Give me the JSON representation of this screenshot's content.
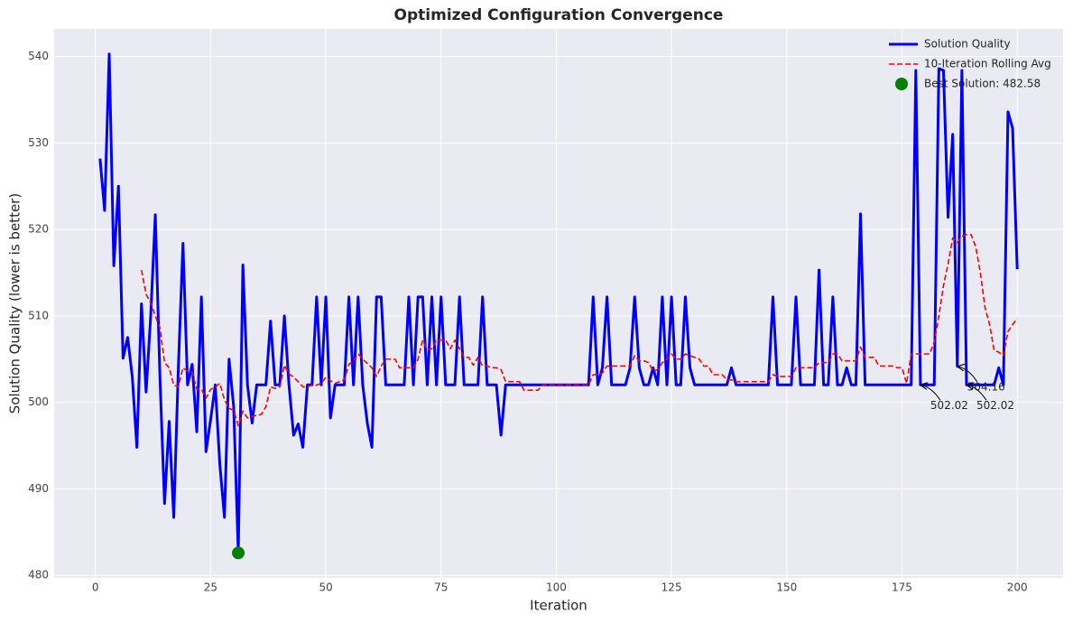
{
  "chart_data": {
    "type": "line",
    "title": "Optimized Configuration Convergence",
    "x_label": "Iteration",
    "y_label": "Solution Quality (lower is better)",
    "x": [
      1,
      2,
      3,
      4,
      5,
      6,
      7,
      8,
      9,
      10,
      11,
      12,
      13,
      14,
      15,
      16,
      17,
      18,
      19,
      20,
      21,
      22,
      23,
      24,
      25,
      26,
      27,
      28,
      29,
      30,
      31,
      32,
      33,
      34,
      35,
      36,
      37,
      38,
      39,
      40,
      41,
      42,
      43,
      44,
      45,
      46,
      47,
      48,
      49,
      50,
      51,
      52,
      53,
      54,
      55,
      56,
      57,
      58,
      59,
      60,
      61,
      62,
      63,
      64,
      65,
      66,
      67,
      68,
      69,
      70,
      71,
      72,
      73,
      74,
      75,
      76,
      77,
      78,
      79,
      80,
      81,
      82,
      83,
      84,
      85,
      86,
      87,
      88,
      89,
      90,
      91,
      92,
      93,
      94,
      95,
      96,
      97,
      98,
      99,
      100,
      101,
      102,
      103,
      104,
      105,
      106,
      107,
      108,
      109,
      110,
      111,
      112,
      113,
      114,
      115,
      116,
      117,
      118,
      119,
      120,
      121,
      122,
      123,
      124,
      125,
      126,
      127,
      128,
      129,
      130,
      131,
      132,
      133,
      134,
      135,
      136,
      137,
      138,
      139,
      140,
      141,
      142,
      143,
      144,
      145,
      146,
      147,
      148,
      149,
      150,
      151,
      152,
      153,
      154,
      155,
      156,
      157,
      158,
      159,
      160,
      161,
      162,
      163,
      164,
      165,
      166,
      167,
      168,
      169,
      170,
      171,
      172,
      173,
      174,
      175,
      176,
      177,
      178,
      179,
      180,
      181,
      182,
      183,
      184,
      185,
      186,
      187,
      188,
      189,
      190,
      191,
      192,
      193,
      194,
      195,
      196,
      197,
      198,
      199,
      200
    ],
    "series": [
      {
        "name": "Solution Quality",
        "color": "#0000ff",
        "style": "solid",
        "values": [
          528.2,
          522.2,
          540.3,
          515.8,
          525,
          505.1,
          507.5,
          503,
          494.8,
          511.4,
          501.2,
          510,
          521.7,
          503,
          488.3,
          497.8,
          486.7,
          504,
          518.4,
          502.02,
          504.4,
          496.6,
          512.2,
          494.3,
          498,
          502.02,
          492.8,
          486.7,
          505,
          499.5,
          482.58,
          515.9,
          502.02,
          497.6,
          502.02,
          502.02,
          502.02,
          509.4,
          502.02,
          502.02,
          510,
          502.02,
          496.2,
          497.5,
          494.8,
          502.02,
          502.02,
          512.2,
          502.02,
          512.2,
          498.2,
          502.02,
          502.02,
          502.02,
          512.2,
          502.02,
          512.2,
          502.02,
          497.6,
          494.8,
          512.2,
          512.2,
          502.02,
          502.02,
          502.02,
          502.02,
          502.02,
          512.2,
          502.02,
          512.2,
          512.2,
          502.02,
          512.2,
          502.02,
          512.2,
          502.02,
          502.02,
          502.02,
          512.2,
          502.02,
          502.02,
          502.02,
          502.02,
          512.2,
          502.02,
          502.02,
          502.02,
          496.2,
          502.02,
          502.02,
          502.02,
          502.02,
          502.02,
          502.02,
          502.02,
          502.02,
          502.02,
          502.02,
          502.02,
          502.02,
          502.02,
          502.02,
          502.02,
          502.02,
          502.02,
          502.02,
          502.02,
          512.2,
          502.02,
          504,
          512.2,
          502.02,
          502.02,
          502.02,
          502.02,
          504,
          512.2,
          504,
          502.02,
          502.02,
          504,
          502.02,
          512.2,
          502.02,
          512.2,
          502.02,
          502.02,
          512.2,
          504,
          502.02,
          502.02,
          502.02,
          502.02,
          502.02,
          502.02,
          502.02,
          502.02,
          504,
          502.02,
          502.02,
          502.02,
          502.02,
          502.02,
          502.02,
          502.02,
          502.02,
          512.2,
          502.02,
          502.02,
          502.02,
          502.02,
          512.2,
          502.02,
          502.02,
          502.02,
          502.02,
          515.3,
          502.02,
          502.02,
          512.2,
          502.02,
          502.02,
          504,
          502.02,
          502.02,
          521.8,
          502.02,
          502.02,
          502.02,
          502.02,
          502.02,
          502.02,
          502.02,
          502.02,
          502.02,
          502.02,
          502.02,
          538.4,
          502.02,
          502.02,
          502.02,
          502.02,
          538.6,
          538.4,
          521.4,
          531,
          504.16,
          538.4,
          502.02,
          502.02,
          502.02,
          502.02,
          502.02,
          502.02,
          502.02,
          504,
          502.02,
          533.6,
          531.7,
          515.4
        ]
      },
      {
        "name": "10-Iteration Rolling Avg",
        "color": "#ff0000",
        "style": "dashed",
        "values": [
          null,
          null,
          null,
          null,
          null,
          null,
          null,
          null,
          null,
          515.3,
          512.5,
          511.5,
          510,
          508.6,
          504.6,
          504,
          502,
          501.8,
          504,
          503.6,
          503.5,
          501.5,
          501.5,
          500.5,
          501.5,
          501.8,
          502.2,
          500.3,
          499.3,
          499.1,
          497.3,
          499,
          498.2,
          498.4,
          498.5,
          498.6,
          499.5,
          501.8,
          501.6,
          501.8,
          504.3,
          503.3,
          502.9,
          502.4,
          501.8,
          501.8,
          502,
          502,
          502.2,
          502.9,
          502.5,
          502.2,
          502.4,
          502.6,
          504.4,
          504.8,
          505.6,
          505,
          504.5,
          504,
          503,
          504.2,
          505,
          505,
          505,
          504,
          504,
          504,
          504,
          505,
          507.2,
          506.1,
          506.2,
          507.2,
          507.2,
          507.2,
          506.2,
          507.2,
          506.2,
          505.2,
          505.2,
          504.3,
          505.2,
          504.2,
          504.2,
          504,
          504,
          503.8,
          502.4,
          502.4,
          502.4,
          502.4,
          501.4,
          501.4,
          501.4,
          501.4,
          502,
          502.02,
          502.02,
          502.02,
          502.02,
          502.02,
          502.02,
          502.02,
          502.02,
          502.02,
          502.02,
          503.2,
          503.2,
          503.4,
          504.2,
          504.2,
          504.2,
          504.2,
          504.2,
          504.2,
          505.4,
          504.8,
          504.8,
          504.6,
          503.6,
          503.8,
          504.6,
          505,
          505.6,
          505,
          505,
          505.6,
          505.4,
          505.2,
          505,
          504.2,
          504.2,
          503.2,
          503.2,
          503.2,
          502.6,
          502.6,
          502.4,
          502.4,
          502.4,
          502.4,
          502.4,
          502.4,
          502.4,
          502.4,
          503.2,
          503,
          503,
          503,
          503,
          504,
          504,
          504,
          504,
          504,
          504.6,
          504.6,
          504.6,
          505.6,
          505.6,
          504.8,
          504.8,
          504.8,
          504.8,
          506.4,
          505.2,
          505.2,
          505.2,
          504.2,
          504.2,
          504.2,
          504.2,
          504,
          504,
          502.2,
          505.6,
          505.6,
          505.6,
          505.6,
          505.6,
          507,
          510,
          513.5,
          516,
          519,
          518.5,
          519.2,
          519.4,
          519.4,
          518,
          515,
          511,
          509,
          506,
          505.8,
          505.4,
          508.2,
          509,
          509.7
        ]
      }
    ],
    "points": {
      "name": "Best Solution: 482.58",
      "color": "#008000",
      "x": [
        31
      ],
      "y": [
        482.58
      ]
    },
    "annotations": [
      {
        "text": "502.02",
        "x": 179,
        "y": 502.02
      },
      {
        "text": "504.16",
        "x": 187,
        "y": 504.16
      },
      {
        "text": "502.02",
        "x": 189,
        "y": 502.02
      }
    ],
    "xlim": [
      -8.95,
      209.95
    ],
    "ylim": [
      479.7,
      543.2
    ],
    "xticks": [
      0,
      25,
      50,
      75,
      100,
      125,
      150,
      175,
      200
    ],
    "yticks": [
      480,
      490,
      500,
      510,
      520,
      530,
      540
    ],
    "grid": true,
    "legend": "upper right"
  }
}
